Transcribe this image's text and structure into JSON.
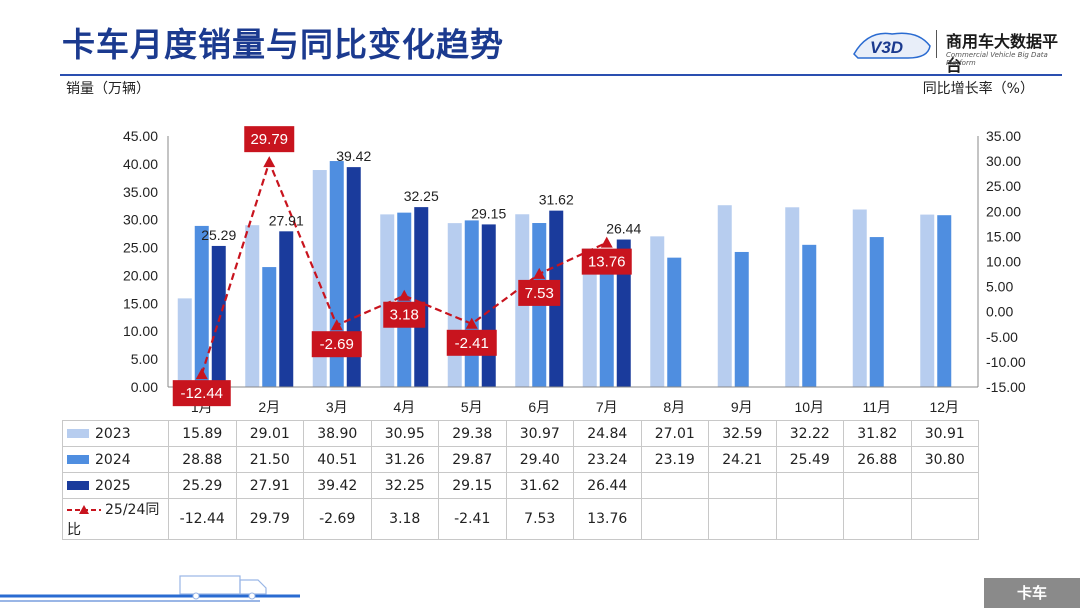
{
  "page": {
    "title": "卡车月度销量与同比变化趋势",
    "left_axis_label": "销量（万辆）",
    "right_axis_label": "同比增长率（%）",
    "logo_text": "V3D",
    "brand_cn": "商用车大数据平台",
    "brand_en": "Commercial Vehicle Big Data Platform",
    "footer_tag": "卡车"
  },
  "colors": {
    "title": "#1b3a8f",
    "s2023": "#b7cdef",
    "s2024": "#4f8ee0",
    "s2025": "#1a3b9c",
    "yoy": "#c8141e"
  },
  "chart_data": {
    "type": "bar",
    "categories": [
      "1月",
      "2月",
      "3月",
      "4月",
      "5月",
      "6月",
      "7月",
      "8月",
      "9月",
      "10月",
      "11月",
      "12月"
    ],
    "series": [
      {
        "name": "2023",
        "values": [
          15.89,
          29.01,
          38.9,
          30.95,
          29.38,
          30.97,
          24.84,
          27.01,
          32.59,
          32.22,
          31.82,
          30.91
        ]
      },
      {
        "name": "2024",
        "values": [
          28.88,
          21.5,
          40.51,
          31.26,
          29.87,
          29.4,
          23.24,
          23.19,
          24.21,
          25.49,
          26.88,
          30.8
        ]
      },
      {
        "name": "2025",
        "values": [
          25.29,
          27.91,
          39.42,
          32.25,
          29.15,
          31.62,
          26.44,
          null,
          null,
          null,
          null,
          null
        ]
      }
    ],
    "line_series": {
      "name": "25/24同比",
      "axis": "right",
      "values": [
        -12.44,
        29.79,
        -2.69,
        3.18,
        -2.41,
        7.53,
        13.76,
        null,
        null,
        null,
        null,
        null
      ]
    },
    "ylim_left": [
      0,
      45
    ],
    "ylim_right": [
      -15,
      35
    ],
    "yticks_left": [
      "0.00",
      "5.00",
      "10.00",
      "15.00",
      "20.00",
      "25.00",
      "30.00",
      "35.00",
      "40.00",
      "45.00"
    ],
    "yticks_right": [
      "-15.00",
      "-10.00",
      "-5.00",
      "0.00",
      "5.00",
      "10.00",
      "15.00",
      "20.00",
      "25.00",
      "30.00",
      "35.00"
    ],
    "bar_labels_2025": [
      "25.29",
      "27.91",
      "39.42",
      "32.25",
      "29.15",
      "31.62",
      "26.44"
    ],
    "yoy_labels": [
      "-12.44",
      "29.79",
      "-2.69",
      "3.18",
      "-2.41",
      "7.53",
      "13.76"
    ],
    "ylabel": "销量（万辆）",
    "ylabel_right": "同比增长率（%）",
    "grid": false
  },
  "table": {
    "rows": [
      {
        "label": "2023",
        "key": "s2023",
        "cells": [
          "15.89",
          "29.01",
          "38.90",
          "30.95",
          "29.38",
          "30.97",
          "24.84",
          "27.01",
          "32.59",
          "32.22",
          "31.82",
          "30.91"
        ]
      },
      {
        "label": "2024",
        "key": "s2024",
        "cells": [
          "28.88",
          "21.50",
          "40.51",
          "31.26",
          "29.87",
          "29.40",
          "23.24",
          "23.19",
          "24.21",
          "25.49",
          "26.88",
          "30.80"
        ]
      },
      {
        "label": "2025",
        "key": "s2025",
        "cells": [
          "25.29",
          "27.91",
          "39.42",
          "32.25",
          "29.15",
          "31.62",
          "26.44",
          "",
          "",
          "",
          "",
          ""
        ]
      },
      {
        "label": "25/24同比",
        "key": "yoy",
        "cells": [
          "-12.44",
          "29.79",
          "-2.69",
          "3.18",
          "-2.41",
          "7.53",
          "13.76",
          "",
          "",
          "",
          "",
          ""
        ]
      }
    ]
  }
}
